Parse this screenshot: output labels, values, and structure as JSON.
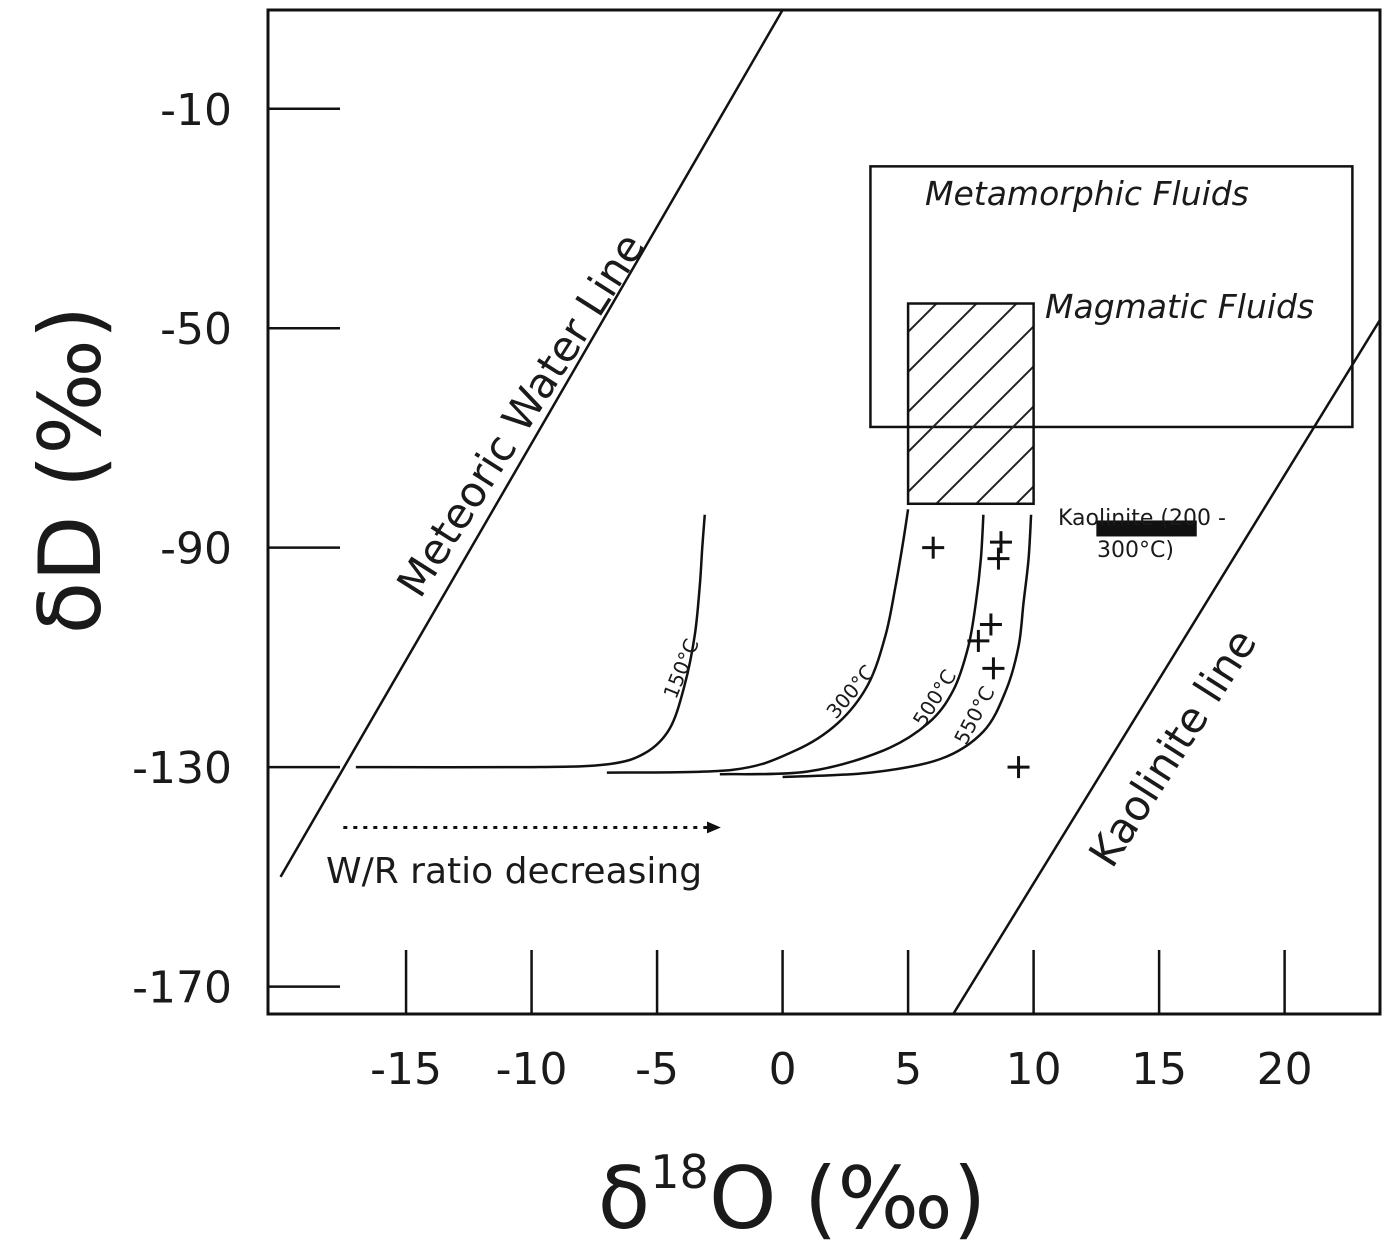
{
  "chart_data": {
    "type": "scatter",
    "title": "",
    "xlabel": "δ18O (‰)",
    "xlabel_parts": {
      "prefix": "δ",
      "sup": "18",
      "suffix": "O (‰)"
    },
    "ylabel": "δD (‰)",
    "xlim": [
      -20.5,
      23.8
    ],
    "ylim": [
      -175,
      8
    ],
    "xticks": [
      -15,
      -10,
      -5,
      0,
      5,
      10,
      15,
      20
    ],
    "yticks": [
      -10,
      -50,
      -90,
      -130,
      -170
    ],
    "grid": false,
    "legend": "none",
    "series": [
      {
        "name": "Meteoric Water Line",
        "kind": "line",
        "x": [
          -20,
          0.0
        ],
        "y": [
          -150.0,
          8.0
        ]
      },
      {
        "name": "Kaolinite line",
        "kind": "line",
        "x": [
          6.8,
          24
        ],
        "y": [
          -175.0,
          -47.0
        ]
      },
      {
        "name": "150°C",
        "kind": "curve",
        "x": [
          -17,
          -10,
          -7,
          -5.5,
          -4.5,
          -3.9,
          -3.5,
          -3.3,
          -3.2,
          -3.1
        ],
        "y": [
          -130,
          -130,
          -129.5,
          -127.5,
          -123,
          -115,
          -106,
          -97,
          -90,
          -84
        ]
      },
      {
        "name": "300°C",
        "kind": "curve",
        "x": [
          -7,
          -2,
          0.5,
          2.2,
          3.4,
          4.1,
          4.5,
          4.8,
          5.0
        ],
        "y": [
          -131,
          -130.5,
          -127,
          -122,
          -115,
          -106,
          -97,
          -89,
          -83
        ]
      },
      {
        "name": "500°C",
        "kind": "curve",
        "x": [
          -2.5,
          1,
          4,
          5.8,
          6.8,
          7.4,
          7.7,
          7.9,
          8.0
        ],
        "y": [
          -131.3,
          -130.8,
          -127,
          -122,
          -116,
          -108,
          -100,
          -92,
          -84
        ]
      },
      {
        "name": "550°C",
        "kind": "curve",
        "x": [
          0,
          3.5,
          6.3,
          8,
          8.9,
          9.4,
          9.6,
          9.8,
          9.9
        ],
        "y": [
          -131.8,
          -131,
          -128.5,
          -123.5,
          -116,
          -108,
          -100,
          -92,
          -84
        ]
      },
      {
        "name": "samples",
        "kind": "points",
        "x": [
          6.0,
          8.7,
          8.6,
          8.3,
          7.8,
          8.4,
          9.4
        ],
        "y": [
          -90,
          -89,
          -92,
          -104,
          -107,
          -112,
          -130
        ]
      }
    ],
    "regions": [
      {
        "name": "Metamorphic Fluids",
        "x": [
          3.5,
          22.7
        ],
        "y": [
          -68.0,
          -20.5
        ],
        "hatch": false
      },
      {
        "name": "Magmatic Fluids",
        "x": [
          5.0,
          10.0
        ],
        "y": [
          -82.0,
          -45.5
        ],
        "hatch": true
      }
    ],
    "bars": [
      {
        "name": "Kaolinite (200-300°C)",
        "x": [
          12.5,
          16.5
        ],
        "y": -86.5
      }
    ],
    "annotations": {
      "meteoric": "Meteoric Water Line",
      "kaolinite": "Kaolinite line",
      "metamorphic": "Metamorphic Fluids",
      "magmatic": "Magmatic Fluids",
      "kaolinite_note_1": "Kaolinite (200 -",
      "kaolinite_note_2": "300°C)",
      "arrow": "W/R ratio decreasing",
      "c150": "150°C",
      "c300": "300°C",
      "c500": "500°C",
      "c550": "550°C"
    },
    "arrow": {
      "x": [
        -17.5,
        -2.5
      ],
      "y": -141,
      "style": "dotted"
    }
  }
}
